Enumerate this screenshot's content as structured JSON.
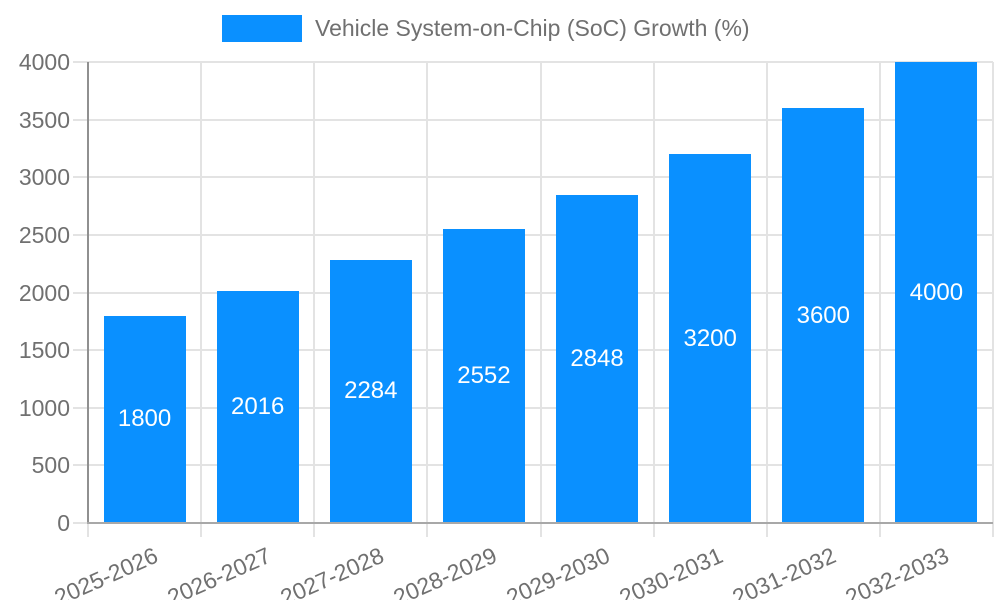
{
  "chart_data": {
    "type": "bar",
    "title": "Vehicle System-on-Chip (SoC) Growth (%)",
    "categories": [
      "2025-2026",
      "2026-2027",
      "2027-2028",
      "2028-2029",
      "2029-2030",
      "2030-2031",
      "2031-2032",
      "2032-2033"
    ],
    "values": [
      1800,
      2016,
      2284,
      2552,
      2848,
      3200,
      3600,
      4000
    ],
    "value_labels": [
      "1800",
      "2016",
      "2284",
      "2552",
      "2848",
      "3200",
      "3600",
      "4000"
    ],
    "xlabel": "",
    "ylabel": "",
    "ylim": [
      0,
      4000
    ],
    "y_ticks": [
      0,
      500,
      1000,
      1500,
      2000,
      2500,
      3000,
      3500,
      4000
    ],
    "y_tick_labels": [
      "0",
      "500",
      "1000",
      "1500",
      "2000",
      "2500",
      "3000",
      "3500",
      "4000"
    ],
    "grid": "horizontal and vertical",
    "legend_position": "top"
  },
  "colors": {
    "bar": "#0A90FF",
    "axis_text": "#707070",
    "legend_text": "#707070",
    "gridline": "#e3e3e3",
    "y_axis_line": "#909090",
    "x_baseline": "#a8a8a8",
    "value_label": "#ffffff",
    "background": "#ffffff"
  }
}
